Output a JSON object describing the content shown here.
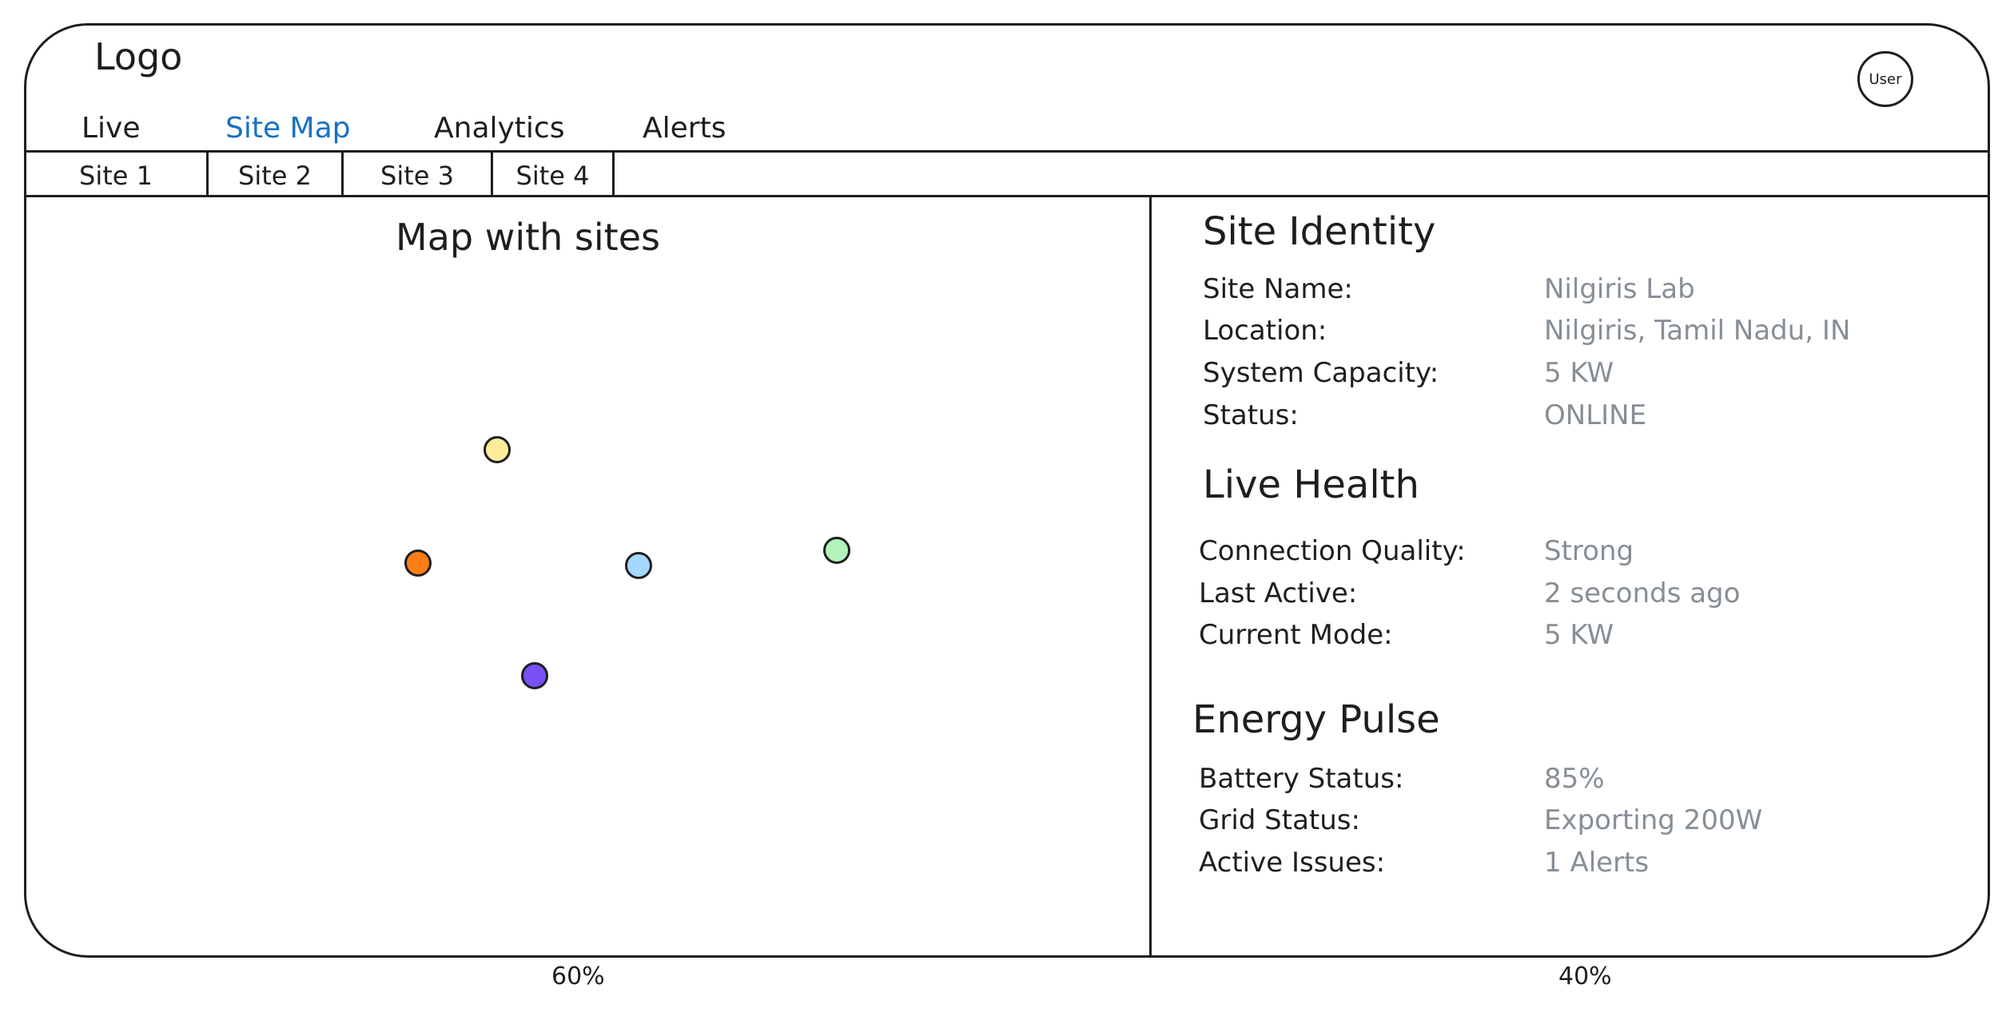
{
  "header": {
    "logo": "Logo",
    "user_label": "User"
  },
  "nav": {
    "items": [
      "Live",
      "Site Map",
      "Analytics",
      "Alerts"
    ],
    "active": "Site Map"
  },
  "site_tabs": [
    "Site 1",
    "Site 2",
    "Site 3",
    "Site 4"
  ],
  "map": {
    "title": "Map with sites",
    "site_colors": [
      "#ffec99",
      "#fd7e14",
      "#a5d8ff",
      "#b2f2bb",
      "#7950f2"
    ]
  },
  "details": {
    "site_identity": {
      "heading": "Site Identity",
      "rows": [
        {
          "label": "Site Name:",
          "value": "Nilgiris Lab"
        },
        {
          "label": "Location:",
          "value": "Nilgiris, Tamil Nadu, IN"
        },
        {
          "label": "System Capacity:",
          "value": "5 KW"
        },
        {
          "label": "Status:",
          "value": "ONLINE"
        }
      ]
    },
    "live_health": {
      "heading": "Live Health",
      "rows": [
        {
          "label": "Connection Quality:",
          "value": "Strong"
        },
        {
          "label": "Last Active:",
          "value": "2 seconds ago"
        },
        {
          "label": "Current Mode:",
          "value": "5 KW"
        }
      ]
    },
    "energy_pulse": {
      "heading": "Energy Pulse",
      "rows": [
        {
          "label": "Battery Status:",
          "value": "85%"
        },
        {
          "label": "Grid Status:",
          "value": "Exporting 200W"
        },
        {
          "label": "Active Issues:",
          "value": "1 Alerts"
        }
      ]
    }
  },
  "split_labels": {
    "left": "60%",
    "right": "40%"
  }
}
